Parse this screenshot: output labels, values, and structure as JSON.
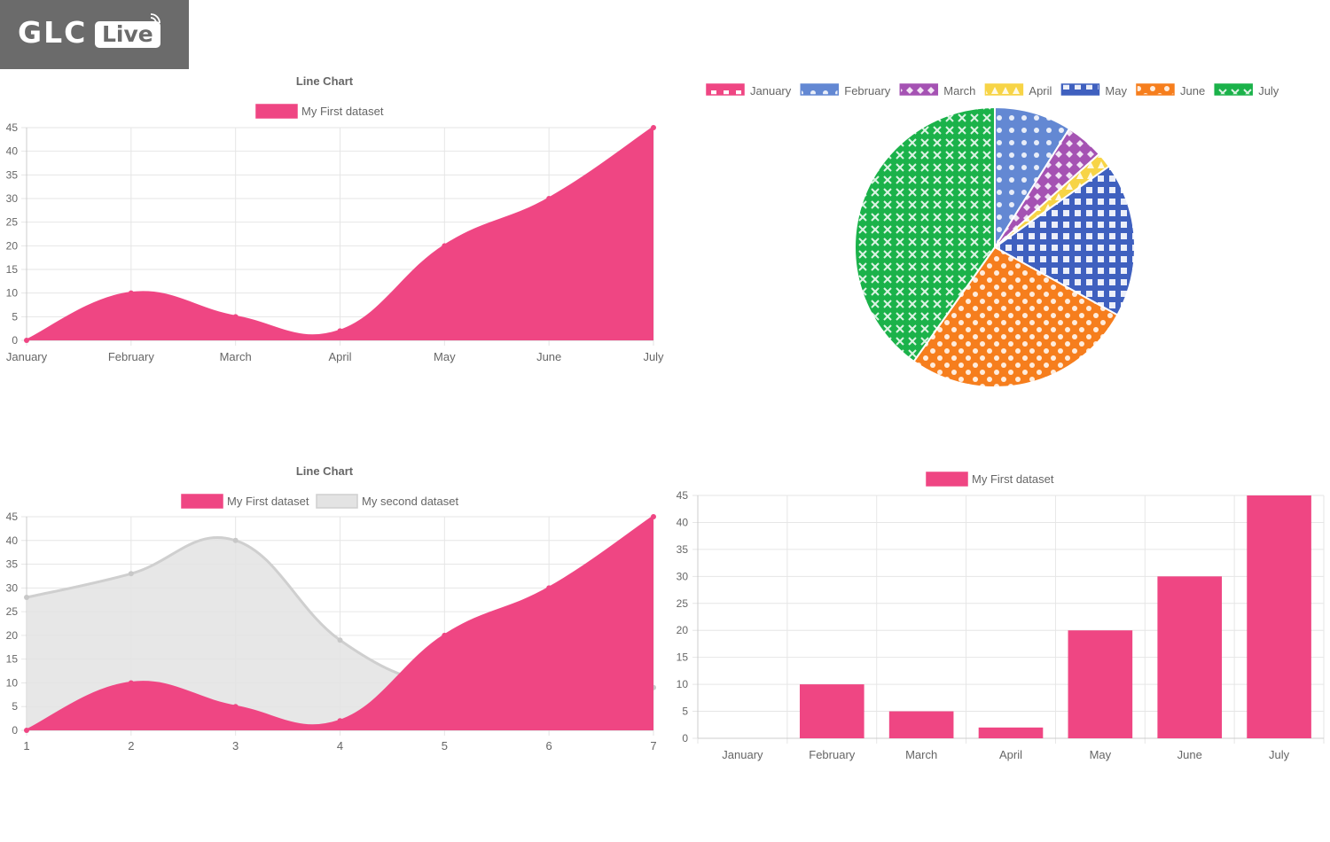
{
  "brand": {
    "logo_text": "GLC",
    "logo_badge": "Live"
  },
  "colors": {
    "pink": "#ef4683",
    "grey": "#e3e3e3",
    "pie": [
      "#ef4683",
      "#6388d3",
      "#a552b3",
      "#f7d446",
      "#3f60bf",
      "#f67e1d",
      "#1bb24a"
    ]
  },
  "chart_data": [
    {
      "type": "area",
      "title": "Line Chart",
      "categories": [
        "January",
        "February",
        "March",
        "April",
        "May",
        "June",
        "July"
      ],
      "series": [
        {
          "name": "My First dataset",
          "values": [
            0,
            10,
            5,
            2,
            20,
            30,
            45
          ]
        }
      ],
      "ylim": [
        0,
        45
      ],
      "yticks": [
        0,
        5,
        10,
        15,
        20,
        25,
        30,
        35,
        40,
        45
      ],
      "grid": true,
      "legend": "top"
    },
    {
      "type": "pie",
      "categories": [
        "January",
        "February",
        "March",
        "April",
        "May",
        "June",
        "July"
      ],
      "values": [
        0,
        10,
        5,
        2,
        20,
        30,
        45
      ],
      "legend": "top"
    },
    {
      "type": "area",
      "title": "Line Chart",
      "x": [
        1,
        2,
        3,
        4,
        5,
        6,
        7
      ],
      "series": [
        {
          "name": "My First dataset",
          "values": [
            0,
            10,
            5,
            2,
            20,
            30,
            45
          ]
        },
        {
          "name": "My second dataset",
          "values": [
            28,
            33,
            40,
            19,
            9,
            8,
            9
          ]
        }
      ],
      "ylim": [
        0,
        45
      ],
      "yticks": [
        0,
        5,
        10,
        15,
        20,
        25,
        30,
        35,
        40,
        45
      ],
      "grid": true,
      "legend": "top"
    },
    {
      "type": "bar",
      "categories": [
        "January",
        "February",
        "March",
        "April",
        "May",
        "June",
        "July"
      ],
      "series": [
        {
          "name": "My First dataset",
          "values": [
            0,
            10,
            5,
            2,
            20,
            30,
            45
          ]
        }
      ],
      "ylim": [
        0,
        45
      ],
      "yticks": [
        0,
        5,
        10,
        15,
        20,
        25,
        30,
        35,
        40,
        45
      ],
      "grid": true,
      "legend": "top"
    }
  ]
}
